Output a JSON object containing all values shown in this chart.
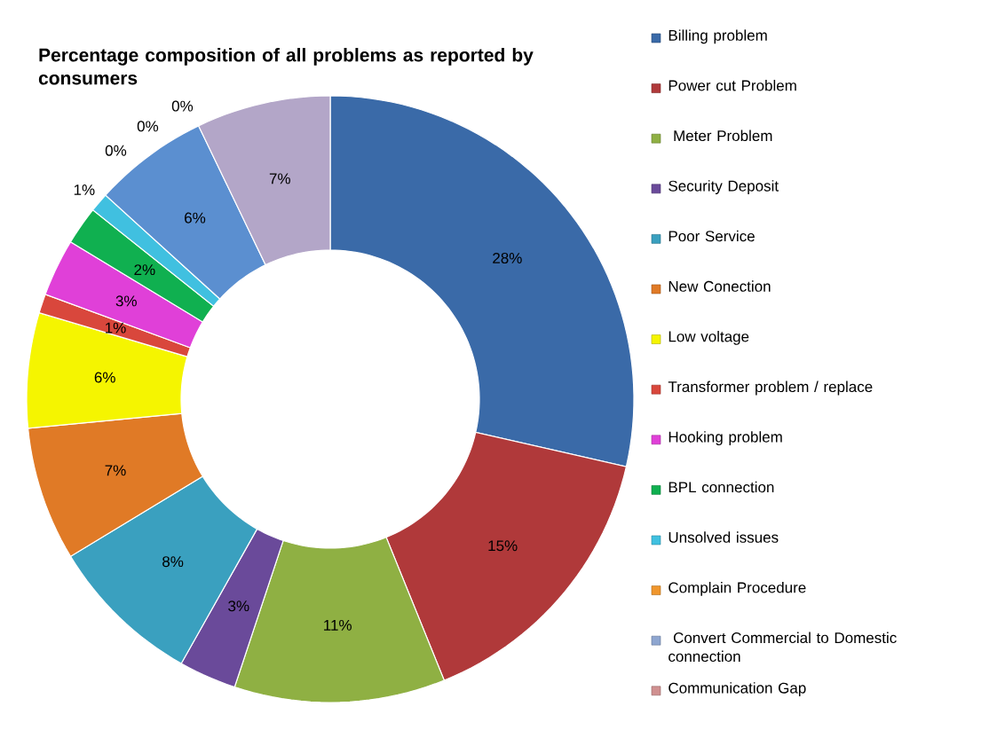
{
  "chart_data": {
    "type": "donut",
    "title": "Percentage composition of all problems as reported by consumers",
    "categories": [
      "Billing problem",
      "Power cut Problem",
      " Meter Problem",
      "Security Deposit",
      "Poor Service",
      "New Conection",
      "Low voltage",
      "Transformer problem  / replace",
      "Hooking problem",
      "BPL connection",
      "Unsolved issues",
      "Complain Procedure",
      " Convert  Commercial to Domestic connection",
      "Communication Gap",
      null,
      null
    ],
    "values": [
      28,
      15,
      11,
      3,
      8,
      7,
      6,
      1,
      3,
      2,
      1,
      0,
      0,
      0,
      6,
      7
    ],
    "value_labels": [
      "28%",
      "15%",
      "11%",
      "3%",
      "8%",
      "7%",
      "6%",
      "1%",
      "3%",
      "2%",
      "1%",
      "0%",
      "0%",
      "0%",
      "6%",
      "7%"
    ],
    "colors": [
      "#3a6aa8",
      "#b0393a",
      "#8fb043",
      "#6a4a9a",
      "#3aa0bf",
      "#e07a26",
      "#f5f500",
      "#d9473c",
      "#e040d8",
      "#10b050",
      "#40c0e0",
      "#f0962c",
      "#8ea6d0",
      "#d09090",
      "#5b8fd0",
      "#b3a6c8"
    ],
    "legend": "right"
  }
}
